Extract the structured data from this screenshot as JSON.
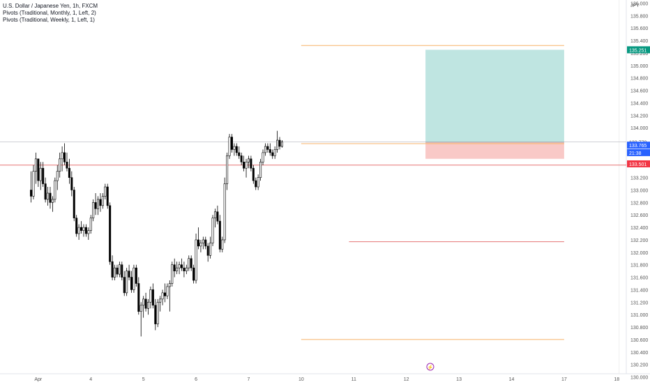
{
  "legend": {
    "symbol_line": "U.S. Dollar / Japanese Yen, 1h, FXCM",
    "pivot_monthly": "Pivots (Traditional, Monthly, 1, Left, 2)",
    "pivot_weekly": "Pivots (Traditional, Weekly, 1, Left, 1)"
  },
  "colors": {
    "up_candle": "#ffffff",
    "down_candle": "#000000",
    "candle_outline": "#000000",
    "pivot_orange": "#f7b267",
    "pivot_red": "#e57373",
    "target_fill": "#bfe5e1",
    "stop_fill": "#f9c9c7",
    "target_label": "#089981",
    "price_label": "#2962ff",
    "stop_label": "#f23645",
    "axis_text": "#555555"
  },
  "chart_data": {
    "type": "candlestick",
    "currency": "JPY",
    "ylim": [
      129.95,
      136.05
    ],
    "y_ticks": [
      "136.000",
      "135.800",
      "135.600",
      "135.400",
      "135.200",
      "135.000",
      "134.800",
      "134.600",
      "134.400",
      "134.200",
      "134.000",
      "133.400",
      "133.200",
      "133.000",
      "132.800",
      "132.600",
      "132.400",
      "132.200",
      "132.000",
      "131.800",
      "131.600",
      "131.400",
      "131.200",
      "131.000",
      "130.800",
      "130.600",
      "130.400",
      "130.200",
      "130.000"
    ],
    "x_ticks": [
      {
        "label": "Apr",
        "t": 3
      },
      {
        "label": "4",
        "t": 25
      },
      {
        "label": "5",
        "t": 47
      },
      {
        "label": "6",
        "t": 69
      },
      {
        "label": "7",
        "t": 91
      },
      {
        "label": "10",
        "t": 113
      },
      {
        "label": "11",
        "t": 135
      },
      {
        "label": "12",
        "t": 157
      },
      {
        "label": "13",
        "t": 179
      },
      {
        "label": "14",
        "t": 201
      },
      {
        "label": "17",
        "t": 223
      },
      {
        "label": "18",
        "t": 245
      }
    ],
    "t_range": [
      -13,
      249
    ],
    "candles": [
      {
        "o": 133.0,
        "h": 133.3,
        "l": 132.8,
        "c": 132.9
      },
      {
        "o": 132.9,
        "h": 133.4,
        "l": 132.85,
        "c": 133.3
      },
      {
        "o": 133.3,
        "h": 133.6,
        "l": 133.1,
        "c": 133.5
      },
      {
        "o": 133.5,
        "h": 133.5,
        "l": 133.05,
        "c": 133.15
      },
      {
        "o": 133.15,
        "h": 133.45,
        "l": 133.0,
        "c": 133.35
      },
      {
        "o": 133.35,
        "h": 133.45,
        "l": 133.05,
        "c": 133.1
      },
      {
        "o": 133.1,
        "h": 133.2,
        "l": 132.8,
        "c": 132.85
      },
      {
        "o": 132.85,
        "h": 133.05,
        "l": 132.75,
        "c": 132.95
      },
      {
        "o": 132.95,
        "h": 133.05,
        "l": 132.7,
        "c": 132.8
      },
      {
        "o": 132.8,
        "h": 132.9,
        "l": 132.65,
        "c": 132.85
      },
      {
        "o": 132.85,
        "h": 133.2,
        "l": 132.8,
        "c": 133.15
      },
      {
        "o": 133.15,
        "h": 133.4,
        "l": 133.0,
        "c": 133.3
      },
      {
        "o": 133.3,
        "h": 133.6,
        "l": 133.2,
        "c": 133.5
      },
      {
        "o": 133.5,
        "h": 133.7,
        "l": 133.3,
        "c": 133.6
      },
      {
        "o": 133.6,
        "h": 133.75,
        "l": 133.4,
        "c": 133.45
      },
      {
        "o": 133.45,
        "h": 133.6,
        "l": 133.3,
        "c": 133.35
      },
      {
        "o": 133.35,
        "h": 133.5,
        "l": 133.1,
        "c": 133.2
      },
      {
        "o": 133.2,
        "h": 133.3,
        "l": 132.9,
        "c": 133.0
      },
      {
        "o": 133.0,
        "h": 133.05,
        "l": 132.5,
        "c": 132.55
      },
      {
        "o": 132.55,
        "h": 132.6,
        "l": 132.25,
        "c": 132.3
      },
      {
        "o": 132.3,
        "h": 132.45,
        "l": 132.2,
        "c": 132.4
      },
      {
        "o": 132.4,
        "h": 132.5,
        "l": 132.3,
        "c": 132.35
      },
      {
        "o": 132.35,
        "h": 132.45,
        "l": 132.25,
        "c": 132.4
      },
      {
        "o": 132.4,
        "h": 132.45,
        "l": 132.25,
        "c": 132.3
      },
      {
        "o": 132.3,
        "h": 132.4,
        "l": 132.2,
        "c": 132.35
      },
      {
        "o": 132.35,
        "h": 132.6,
        "l": 132.3,
        "c": 132.55
      },
      {
        "o": 132.55,
        "h": 132.85,
        "l": 132.5,
        "c": 132.8
      },
      {
        "o": 132.8,
        "h": 132.95,
        "l": 132.6,
        "c": 132.7
      },
      {
        "o": 132.7,
        "h": 132.9,
        "l": 132.6,
        "c": 132.85
      },
      {
        "o": 132.85,
        "h": 132.95,
        "l": 132.65,
        "c": 132.75
      },
      {
        "o": 132.75,
        "h": 132.95,
        "l": 132.7,
        "c": 132.9
      },
      {
        "o": 132.9,
        "h": 133.1,
        "l": 132.85,
        "c": 133.05
      },
      {
        "o": 133.05,
        "h": 133.1,
        "l": 132.7,
        "c": 132.75
      },
      {
        "o": 132.75,
        "h": 132.8,
        "l": 131.8,
        "c": 131.85
      },
      {
        "o": 131.85,
        "h": 131.95,
        "l": 131.55,
        "c": 131.6
      },
      {
        "o": 131.6,
        "h": 131.8,
        "l": 131.55,
        "c": 131.75
      },
      {
        "o": 131.75,
        "h": 131.8,
        "l": 131.6,
        "c": 131.65
      },
      {
        "o": 131.65,
        "h": 131.85,
        "l": 131.6,
        "c": 131.8
      },
      {
        "o": 131.8,
        "h": 131.85,
        "l": 131.55,
        "c": 131.6
      },
      {
        "o": 131.6,
        "h": 131.7,
        "l": 131.3,
        "c": 131.35
      },
      {
        "o": 131.35,
        "h": 131.75,
        "l": 131.3,
        "c": 131.7
      },
      {
        "o": 131.7,
        "h": 131.8,
        "l": 131.55,
        "c": 131.6
      },
      {
        "o": 131.6,
        "h": 131.7,
        "l": 131.35,
        "c": 131.4
      },
      {
        "o": 131.4,
        "h": 131.8,
        "l": 131.35,
        "c": 131.75
      },
      {
        "o": 131.75,
        "h": 131.8,
        "l": 131.45,
        "c": 131.5
      },
      {
        "o": 131.5,
        "h": 131.6,
        "l": 131.0,
        "c": 131.05
      },
      {
        "o": 131.05,
        "h": 131.2,
        "l": 130.65,
        "c": 131.15
      },
      {
        "o": 131.15,
        "h": 131.3,
        "l": 130.95,
        "c": 131.25
      },
      {
        "o": 131.25,
        "h": 131.35,
        "l": 131.05,
        "c": 131.1
      },
      {
        "o": 131.1,
        "h": 131.25,
        "l": 131.0,
        "c": 131.2
      },
      {
        "o": 131.2,
        "h": 131.45,
        "l": 131.1,
        "c": 131.4
      },
      {
        "o": 131.4,
        "h": 131.5,
        "l": 131.1,
        "c": 131.15
      },
      {
        "o": 131.15,
        "h": 131.25,
        "l": 130.75,
        "c": 130.85
      },
      {
        "o": 130.85,
        "h": 131.25,
        "l": 130.8,
        "c": 131.2
      },
      {
        "o": 131.2,
        "h": 131.3,
        "l": 131.05,
        "c": 131.25
      },
      {
        "o": 131.25,
        "h": 131.4,
        "l": 131.15,
        "c": 131.35
      },
      {
        "o": 131.35,
        "h": 131.5,
        "l": 131.2,
        "c": 131.3
      },
      {
        "o": 131.3,
        "h": 131.5,
        "l": 131.25,
        "c": 131.45
      },
      {
        "o": 131.45,
        "h": 131.55,
        "l": 131.05,
        "c": 131.5
      },
      {
        "o": 131.5,
        "h": 131.85,
        "l": 131.45,
        "c": 131.8
      },
      {
        "o": 131.8,
        "h": 131.9,
        "l": 131.6,
        "c": 131.7
      },
      {
        "o": 131.7,
        "h": 131.85,
        "l": 131.65,
        "c": 131.75
      },
      {
        "o": 131.75,
        "h": 131.85,
        "l": 131.65,
        "c": 131.8
      },
      {
        "o": 131.8,
        "h": 131.9,
        "l": 131.7,
        "c": 131.75
      },
      {
        "o": 131.75,
        "h": 131.85,
        "l": 131.6,
        "c": 131.7
      },
      {
        "o": 131.7,
        "h": 131.8,
        "l": 131.65,
        "c": 131.75
      },
      {
        "o": 131.75,
        "h": 131.95,
        "l": 131.7,
        "c": 131.9
      },
      {
        "o": 131.9,
        "h": 131.95,
        "l": 131.7,
        "c": 131.75
      },
      {
        "o": 131.75,
        "h": 131.8,
        "l": 131.5,
        "c": 131.55
      },
      {
        "o": 131.55,
        "h": 132.3,
        "l": 131.5,
        "c": 132.2
      },
      {
        "o": 132.2,
        "h": 132.4,
        "l": 132.05,
        "c": 132.1
      },
      {
        "o": 132.1,
        "h": 132.2,
        "l": 132.0,
        "c": 132.15
      },
      {
        "o": 132.15,
        "h": 132.25,
        "l": 132.05,
        "c": 132.2
      },
      {
        "o": 132.2,
        "h": 132.25,
        "l": 132.05,
        "c": 132.1
      },
      {
        "o": 132.1,
        "h": 132.15,
        "l": 131.85,
        "c": 131.95
      },
      {
        "o": 131.95,
        "h": 132.25,
        "l": 131.9,
        "c": 132.15
      },
      {
        "o": 132.15,
        "h": 132.6,
        "l": 132.1,
        "c": 132.55
      },
      {
        "o": 132.55,
        "h": 132.7,
        "l": 132.4,
        "c": 132.65
      },
      {
        "o": 132.65,
        "h": 132.75,
        "l": 132.45,
        "c": 132.5
      },
      {
        "o": 132.5,
        "h": 132.6,
        "l": 132.0,
        "c": 132.05
      },
      {
        "o": 132.05,
        "h": 132.25,
        "l": 132.0,
        "c": 132.2
      },
      {
        "o": 132.2,
        "h": 133.2,
        "l": 132.15,
        "c": 133.1
      },
      {
        "o": 133.1,
        "h": 133.6,
        "l": 133.0,
        "c": 133.55
      },
      {
        "o": 133.55,
        "h": 133.9,
        "l": 133.5,
        "c": 133.85
      },
      {
        "o": 133.85,
        "h": 133.9,
        "l": 133.6,
        "c": 133.65
      },
      {
        "o": 133.65,
        "h": 133.75,
        "l": 133.55,
        "c": 133.7
      },
      {
        "o": 133.7,
        "h": 133.75,
        "l": 133.55,
        "c": 133.6
      },
      {
        "o": 133.6,
        "h": 133.7,
        "l": 133.5,
        "c": 133.55
      },
      {
        "o": 133.55,
        "h": 133.6,
        "l": 133.4,
        "c": 133.45
      },
      {
        "o": 133.45,
        "h": 133.55,
        "l": 133.3,
        "c": 133.35
      },
      {
        "o": 133.35,
        "h": 133.5,
        "l": 133.2,
        "c": 133.45
      },
      {
        "o": 133.45,
        "h": 133.55,
        "l": 133.35,
        "c": 133.5
      },
      {
        "o": 133.5,
        "h": 133.55,
        "l": 133.3,
        "c": 133.35
      },
      {
        "o": 133.35,
        "h": 133.4,
        "l": 133.1,
        "c": 133.15
      },
      {
        "o": 133.15,
        "h": 133.2,
        "l": 133.0,
        "c": 133.05
      },
      {
        "o": 133.05,
        "h": 133.25,
        "l": 133.0,
        "c": 133.2
      },
      {
        "o": 133.2,
        "h": 133.5,
        "l": 133.15,
        "c": 133.45
      },
      {
        "o": 133.45,
        "h": 133.65,
        "l": 133.4,
        "c": 133.6
      },
      {
        "o": 133.6,
        "h": 133.75,
        "l": 133.55,
        "c": 133.7
      },
      {
        "o": 133.7,
        "h": 133.75,
        "l": 133.6,
        "c": 133.65
      },
      {
        "o": 133.65,
        "h": 133.75,
        "l": 133.55,
        "c": 133.6
      },
      {
        "o": 133.6,
        "h": 133.65,
        "l": 133.5,
        "c": 133.55
      },
      {
        "o": 133.55,
        "h": 133.7,
        "l": 133.5,
        "c": 133.65
      },
      {
        "o": 133.65,
        "h": 133.95,
        "l": 133.6,
        "c": 133.8
      },
      {
        "o": 133.8,
        "h": 133.85,
        "l": 133.65,
        "c": 133.7
      },
      {
        "o": 133.7,
        "h": 133.8,
        "l": 133.68,
        "c": 133.77
      }
    ],
    "current_price": 133.77,
    "pivot_levels": [
      {
        "name": "weekly-r1",
        "price": 135.32,
        "t_start": 113,
        "t_end": 223,
        "color": "#f7b267"
      },
      {
        "name": "weekly-p",
        "price": 133.745,
        "t_start": 113,
        "t_end": 223,
        "color": "#f7b267"
      },
      {
        "name": "weekly-s1",
        "price": 130.6,
        "t_start": 113,
        "t_end": 223,
        "color": "#f7b267"
      },
      {
        "name": "monthly-r",
        "price": 133.4,
        "t_start": -13,
        "t_end": 249,
        "color": "#e57373"
      },
      {
        "name": "monthly-s",
        "price": 132.17,
        "t_start": 133,
        "t_end": 223,
        "color": "#e57373"
      }
    ],
    "position": {
      "type": "long",
      "t_start": 165,
      "t_end": 223,
      "entry": 133.77,
      "target": 135.251,
      "stop": 133.501
    },
    "price_labels": [
      {
        "text": "135.251",
        "price": 135.251,
        "kind": "target"
      },
      {
        "text": "133.770",
        "price": 133.77,
        "kind": "plain"
      },
      {
        "text": "133.765",
        "price": 133.72,
        "kind": "price"
      },
      {
        "text": "21:38",
        "price": 133.6,
        "kind": "price"
      },
      {
        "text": "133.501",
        "price": 133.42,
        "kind": "stop"
      }
    ],
    "event_marker": {
      "t": 167,
      "symbol": "⚡"
    }
  }
}
